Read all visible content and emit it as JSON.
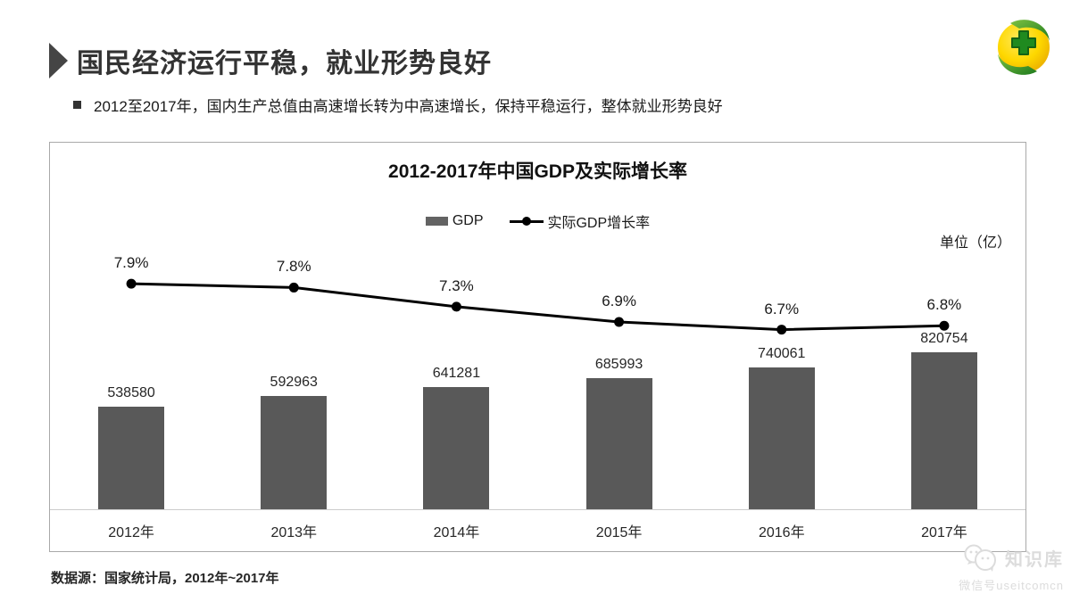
{
  "header": {
    "title": "国民经济运行平稳，就业形势良好"
  },
  "bullet": "2012至2017年，国内生产总值由高速增长转为中高速增长，保持平稳运行，整体就业形势良好",
  "logo": {
    "name": "360-safeguard-logo"
  },
  "chart_data": {
    "type": "bar+line",
    "title": "2012-2017年中国GDP及实际增长率",
    "unit_label": "单位（亿）",
    "categories": [
      "2012年",
      "2013年",
      "2014年",
      "2015年",
      "2016年",
      "2017年"
    ],
    "series": [
      {
        "name": "GDP",
        "type": "bar",
        "values": [
          538580,
          592963,
          641281,
          685993,
          740061,
          820754
        ],
        "color": "#595959"
      },
      {
        "name": "实际GDP增长率",
        "type": "line",
        "values": [
          7.9,
          7.8,
          7.3,
          6.9,
          6.7,
          6.8
        ],
        "value_labels": [
          "7.9%",
          "7.8%",
          "7.3%",
          "6.9%",
          "6.7%",
          "6.8%"
        ],
        "color": "#000000"
      }
    ],
    "ylim": [
      0,
      1400000
    ],
    "y2lim": [
      2,
      9
    ],
    "grid": false,
    "legend_position": "top"
  },
  "source": "数据源：国家统计局，2012年~2017年",
  "watermark": {
    "line1": "知识库",
    "line2": "微信号useitcomcn"
  }
}
